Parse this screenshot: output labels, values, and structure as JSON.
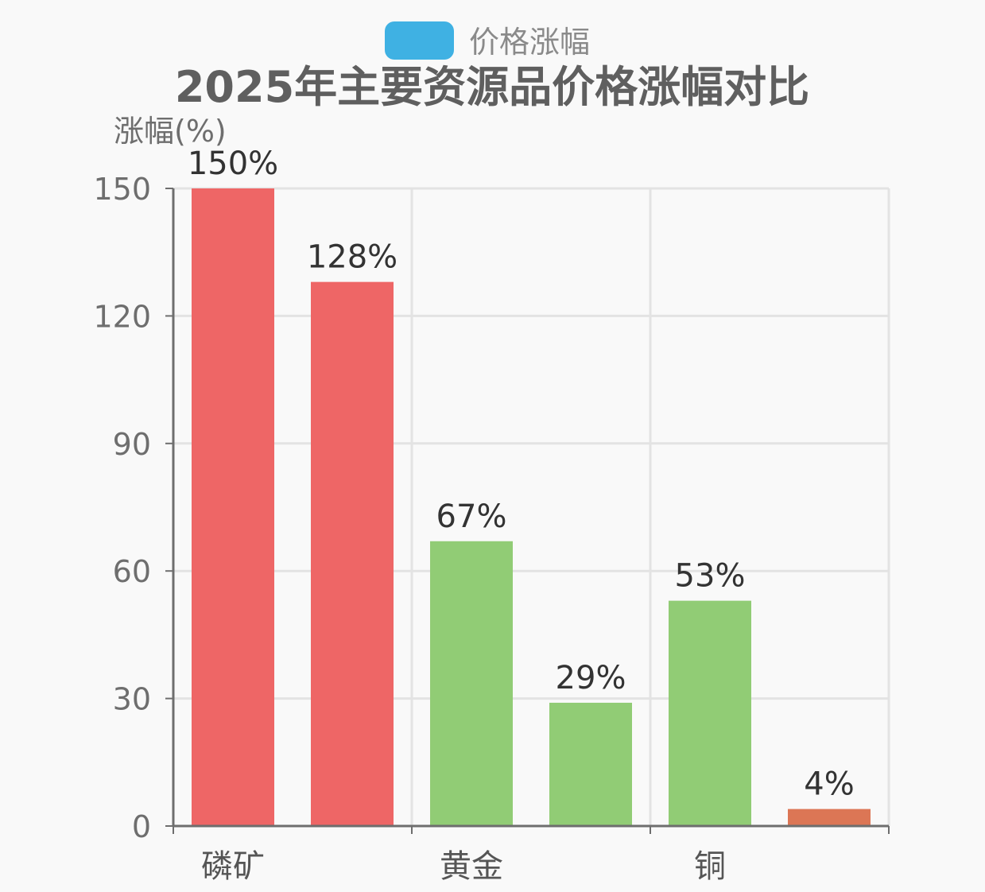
{
  "chart_data": {
    "type": "bar",
    "title": "2025年主要资源品价格涨幅对比",
    "ylabel": "涨幅(%)",
    "xlabel": "",
    "legend": {
      "label": "价格涨幅",
      "color": "#3fb1e3",
      "position": "top-center"
    },
    "categories": [
      "磷矿",
      "黄金",
      "铜"
    ],
    "yticks": [
      0,
      30,
      60,
      90,
      120,
      150
    ],
    "ylim": [
      0,
      150
    ],
    "grid": true,
    "bars": [
      {
        "value": 150,
        "label": "150%",
        "color": "#ee6666",
        "category_index": 0
      },
      {
        "value": 128,
        "label": "128%",
        "color": "#ee6666",
        "category_index": 0
      },
      {
        "value": 67,
        "label": "67%",
        "color": "#91cc75",
        "category_index": 1
      },
      {
        "value": 29,
        "label": "29%",
        "color": "#91cc75",
        "category_index": 1
      },
      {
        "value": 53,
        "label": "53%",
        "color": "#91cc75",
        "category_index": 2
      },
      {
        "value": 4,
        "label": "4%",
        "color": "#dc7655",
        "category_index": 2
      }
    ]
  }
}
